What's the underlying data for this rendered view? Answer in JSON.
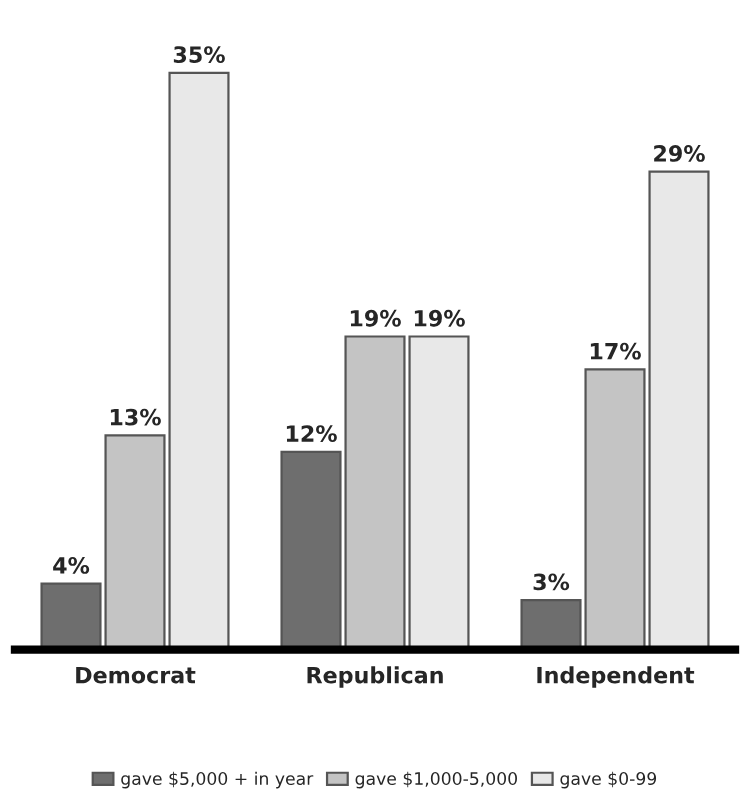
{
  "chart_data": {
    "type": "bar",
    "categories": [
      "Democrat",
      "Republican",
      "Independent"
    ],
    "series": [
      {
        "name": "gave $5,000 + in year",
        "color": "#6e6e6e",
        "values": [
          4,
          12,
          3
        ],
        "value_labels": [
          "4%",
          "12%",
          "3%"
        ]
      },
      {
        "name": "gave $1,000-5,000",
        "color": "#c4c4c4",
        "values": [
          13,
          19,
          17
        ],
        "value_labels": [
          "13%",
          "19%",
          "17%"
        ]
      },
      {
        "name": "gave $0-99",
        "color": "#e8e8e8",
        "values": [
          35,
          19,
          29
        ],
        "value_labels": [
          "35%",
          "19%",
          "29%"
        ]
      }
    ],
    "legend": "bottom",
    "grid": false,
    "tick_labels": "x"
  }
}
